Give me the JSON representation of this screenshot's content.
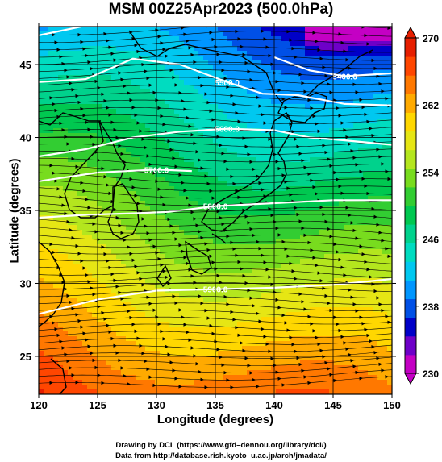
{
  "title": "MSM 00Z25Apr2023 (500.0hPa)",
  "xlabel": "Longitude (degrees)",
  "ylabel": "Latitude  (degrees)",
  "credits": [
    "Drawing by DCL (https://www.gfd–dennou.org/library/dcl/)",
    "Data from http://database.rish.kyoto–u.ac.jp/arch/jmadata/"
  ],
  "map": {
    "lon_range": [
      120,
      150
    ],
    "lat_range": [
      22.4,
      47.6
    ],
    "x_ticks": [
      120,
      125,
      130,
      135,
      140,
      145,
      150
    ],
    "y_ticks": [
      25,
      30,
      35,
      40,
      45
    ],
    "x_tick_labels": [
      "120",
      "125",
      "130",
      "135",
      "140",
      "145",
      "150"
    ],
    "y_tick_labels": [
      "25",
      "30",
      "35",
      "40",
      "45"
    ],
    "variable": "temperature (K), shaded",
    "wind": "streamlines, mostly westerly",
    "contour_color": "#ffffff",
    "contours": [
      {
        "label": "5400.0",
        "points": [
          [
            120,
            47
          ],
          [
            126,
            48
          ],
          [
            131,
            48.2
          ]
        ]
      },
      {
        "label": "5400.0",
        "points": [
          [
            140,
            45.5
          ],
          [
            143,
            44.6
          ],
          [
            146,
            44.2
          ],
          [
            150,
            44.4
          ]
        ]
      },
      {
        "label": "5500.0",
        "points": [
          [
            120,
            43.8
          ],
          [
            124,
            44
          ],
          [
            128,
            45.4
          ],
          [
            132,
            45
          ],
          [
            136,
            43.8
          ],
          [
            139,
            43
          ],
          [
            142,
            42.9
          ],
          [
            146,
            42.3
          ],
          [
            150,
            42.2
          ]
        ]
      },
      {
        "label": "5600.0",
        "points": [
          [
            120,
            38.7
          ],
          [
            124,
            39.2
          ],
          [
            128,
            40
          ],
          [
            132,
            40.4
          ],
          [
            136,
            40.6
          ],
          [
            140,
            40.5
          ],
          [
            143,
            40
          ],
          [
            146,
            39.8
          ],
          [
            150,
            39.5
          ]
        ]
      },
      {
        "label": "5700.0",
        "points": [
          [
            120,
            37
          ],
          [
            125,
            37.6
          ],
          [
            130,
            37.8
          ],
          [
            133,
            37.7
          ]
        ]
      },
      {
        "label": "5800.0",
        "points": [
          [
            120,
            34.5
          ],
          [
            124,
            34.7
          ],
          [
            128,
            34.8
          ],
          [
            131,
            34.9
          ],
          [
            135,
            35.3
          ],
          [
            140,
            35.5
          ],
          [
            145,
            35.7
          ],
          [
            150,
            35.7
          ]
        ]
      },
      {
        "label": "5900.0",
        "points": [
          [
            120,
            27.9
          ],
          [
            125,
            28.9
          ],
          [
            130,
            29.5
          ],
          [
            135,
            29.6
          ],
          [
            140,
            29.7
          ],
          [
            145,
            29.9
          ],
          [
            150,
            30.3
          ]
        ]
      }
    ]
  },
  "colorbar": {
    "ticks": [
      230,
      238,
      246,
      254,
      262,
      270
    ],
    "tick_labels": [
      "230",
      "238",
      "246",
      "254",
      "262",
      "270"
    ],
    "range": [
      230,
      270
    ],
    "colors": [
      "#c400c4",
      "#6e00c8",
      "#0000c8",
      "#0050e6",
      "#0096ff",
      "#00c8f0",
      "#00dcc0",
      "#00d28c",
      "#00c850",
      "#32cd32",
      "#78dc1e",
      "#b4e61e",
      "#e6e614",
      "#ffd700",
      "#ffaa00",
      "#ff7800",
      "#ff4600",
      "#e61e00"
    ]
  }
}
